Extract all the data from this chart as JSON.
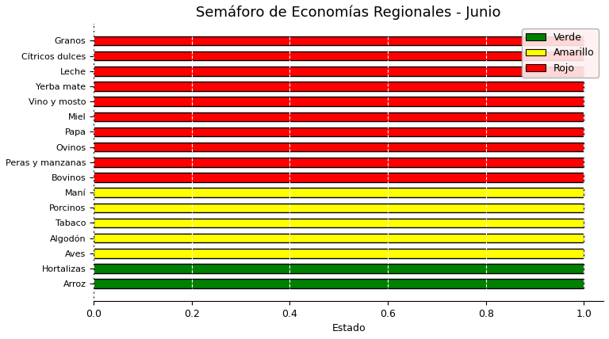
{
  "title": "Semáforo de Economías Regionales - Junio",
  "xlabel": "Estado",
  "categories": [
    "Arroz",
    "Hortalizas",
    "Aves",
    "Algodón",
    "Tabaco",
    "Porcinos",
    "Maní",
    "Bovinos",
    "Peras y manzanas",
    "Ovinos",
    "Papa",
    "Miel",
    "Vino y mosto",
    "Yerba mate",
    "Leche",
    "Cítricos dulces",
    "Granos"
  ],
  "values": [
    1.0,
    1.0,
    1.0,
    1.0,
    1.0,
    1.0,
    1.0,
    1.0,
    1.0,
    1.0,
    1.0,
    1.0,
    1.0,
    1.0,
    1.0,
    1.0,
    1.0
  ],
  "colors": [
    "#008000",
    "#008000",
    "#FFFF00",
    "#FFFF00",
    "#FFFF00",
    "#FFFF00",
    "#FFFF00",
    "#FF0000",
    "#FF0000",
    "#FF0000",
    "#FF0000",
    "#FF0000",
    "#FF0000",
    "#FF0000",
    "#FF0000",
    "#FF0000",
    "#FF0000"
  ],
  "legend_labels": [
    "Verde",
    "Amarillo",
    "Rojo"
  ],
  "legend_colors": [
    "#008000",
    "#FFFF00",
    "#FF0000"
  ],
  "xlim": [
    0.0,
    1.04
  ],
  "xticks": [
    0.0,
    0.2,
    0.4,
    0.6,
    0.8,
    1.0
  ],
  "bar_edgecolor": "black",
  "bar_linewidth": 1.0,
  "bar_height": 0.6,
  "background_color": "#ffffff",
  "grid_color": "#ffffff",
  "grid_linestyle": "--",
  "grid_linewidth": 0.8,
  "title_fontsize": 13,
  "label_fontsize": 9,
  "tick_fontsize": 9,
  "ytick_fontsize": 8
}
